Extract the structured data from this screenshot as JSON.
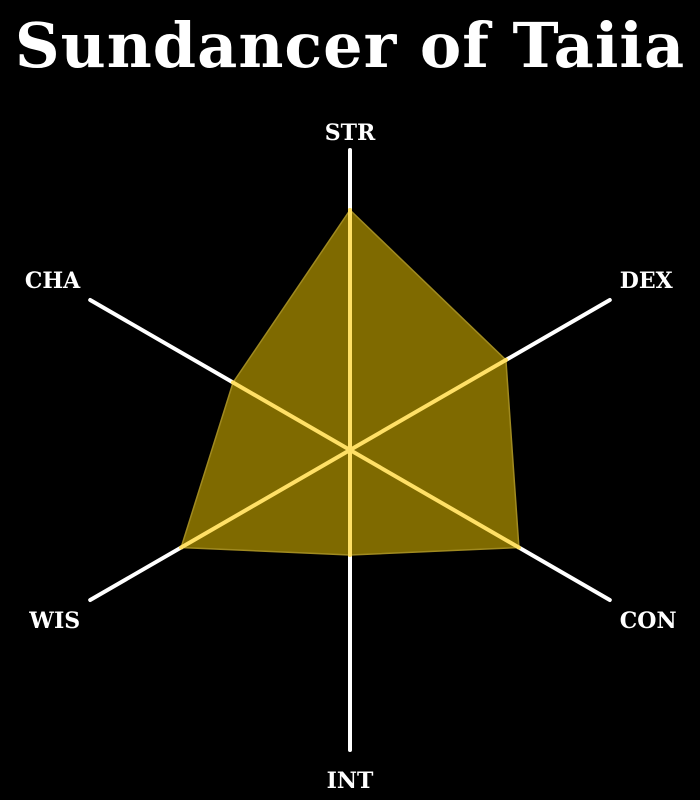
{
  "chart_data": {
    "type": "radar",
    "title": "Sundancer of Taiia",
    "axes": [
      "STR",
      "DEX",
      "CON",
      "INT",
      "WIS",
      "CHA"
    ],
    "values": [
      16,
      12,
      13,
      7,
      13,
      9
    ],
    "range": [
      0,
      20
    ],
    "colors": {
      "background": "#000000",
      "axis": "#ffffff",
      "fill": "#7f6a00",
      "outline": "#ffe066"
    }
  }
}
